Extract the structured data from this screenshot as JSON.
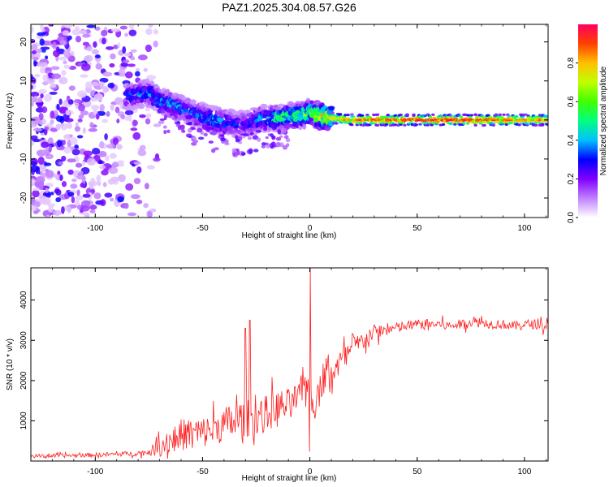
{
  "figure": {
    "title": "PAZ1.2025.304.08.57.G26"
  },
  "chart_data": [
    {
      "type": "heatmap",
      "title": "PAZ1.2025.304.08.57.G26",
      "xlabel": "Height of straight line (km)",
      "ylabel": "Frequency (Hz)",
      "xlim": [
        -130,
        111
      ],
      "ylim": [
        -25,
        24.5
      ],
      "xticks": [
        -100,
        -50,
        0,
        50,
        100
      ],
      "yticks": [
        -20,
        -10,
        0,
        10,
        20
      ],
      "colorbar": {
        "label": "Normalized spectral amplitude",
        "range": [
          0,
          1
        ],
        "ticks": [
          "0.0",
          "0.2",
          "0.4",
          "0.6",
          "0.8"
        ],
        "colors": [
          "#ffffff",
          "#c080ff",
          "#8000ff",
          "#0000ff",
          "#00c0ff",
          "#00ff80",
          "#40ff00",
          "#c0ff00",
          "#ffc000",
          "#ff4000",
          "#ff0060"
        ]
      },
      "ridge": {
        "x": [
          -85,
          -80,
          -75,
          -70,
          -65,
          -60,
          -55,
          -50,
          -45,
          -40,
          -35,
          -30,
          -25,
          -20,
          -15,
          -10,
          -5,
          0,
          5,
          10,
          20,
          30,
          40,
          50,
          60,
          70,
          80,
          90,
          100,
          111
        ],
        "freq": [
          6,
          6.5,
          7,
          5,
          4,
          3,
          2,
          1,
          0,
          -0.5,
          -1,
          -1,
          0,
          0.5,
          0.5,
          1,
          1,
          2,
          1,
          0.5,
          0,
          0,
          0,
          0,
          0,
          0,
          0,
          0,
          0,
          0
        ],
        "amplitude": [
          0.3,
          0.35,
          0.4,
          0.35,
          0.4,
          0.35,
          0.3,
          0.35,
          0.4,
          0.35,
          0.3,
          0.25,
          0.35,
          0.4,
          0.5,
          0.55,
          0.55,
          0.6,
          0.7,
          0.75,
          0.85,
          0.9,
          0.9,
          0.95,
          0.95,
          0.95,
          0.9,
          0.9,
          0.85,
          0.85
        ]
      },
      "noise_region": [
        -130,
        -70
      ]
    },
    {
      "type": "line",
      "xlabel": "Height of straight line (km)",
      "ylabel": "SNR (10 * v/v)",
      "xlim": [
        -130,
        111
      ],
      "ylim": [
        0,
        4800
      ],
      "xticks": [
        -100,
        -50,
        0,
        50,
        100
      ],
      "yticks": [
        1000,
        2000,
        3000,
        4000
      ],
      "series": [
        {
          "name": "SNR",
          "color": "#ff2020",
          "x": [
            -130,
            -120,
            -110,
            -100,
            -90,
            -80,
            -75,
            -70,
            -65,
            -60,
            -55,
            -50,
            -45,
            -40,
            -35,
            -30,
            -25,
            -20,
            -15,
            -10,
            -5,
            -2,
            0,
            2,
            5,
            10,
            15,
            20,
            25,
            30,
            35,
            40,
            45,
            50,
            55,
            60,
            65,
            70,
            75,
            80,
            85,
            90,
            95,
            100,
            105,
            111
          ],
          "mean": [
            120,
            130,
            140,
            150,
            170,
            190,
            220,
            350,
            500,
            650,
            700,
            700,
            800,
            900,
            1000,
            1050,
            1100,
            1200,
            1300,
            1400,
            1600,
            1900,
            2000,
            1200,
            1900,
            2200,
            2500,
            2800,
            3000,
            3200,
            3250,
            3300,
            3350,
            3400,
            3400,
            3400,
            3350,
            3400,
            3450,
            3450,
            3400,
            3400,
            3350,
            3400,
            3400,
            3350
          ],
          "noise": [
            60,
            60,
            60,
            70,
            70,
            80,
            100,
            300,
            450,
            500,
            500,
            500,
            500,
            550,
            600,
            600,
            550,
            550,
            600,
            500,
            450,
            400,
            300,
            300,
            500,
            450,
            400,
            350,
            300,
            250,
            200,
            180,
            180,
            150,
            150,
            150,
            150,
            150,
            150,
            150,
            150,
            150,
            150,
            150,
            150,
            150
          ],
          "spikes": [
            {
              "x": 0,
              "y": 4800
            },
            {
              "x": -30,
              "y": 3300
            },
            {
              "x": -28,
              "y": 3500
            }
          ]
        }
      ]
    }
  ]
}
